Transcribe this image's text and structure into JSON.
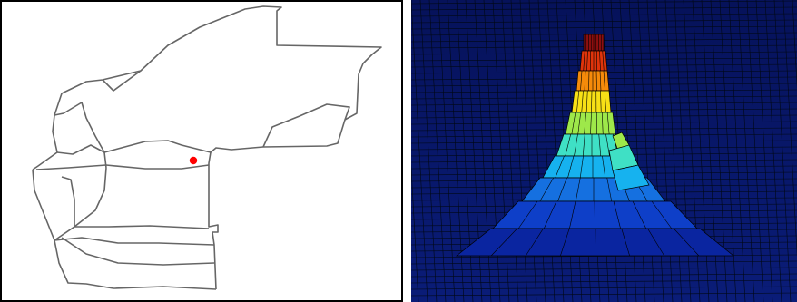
{
  "figure": {
    "left_panel": {
      "type": "network-map",
      "colors": {
        "frame": "#000000",
        "roads": "#666666",
        "marker": "#ff0000",
        "background": "#ffffff"
      },
      "icon": "red-dot-marker"
    },
    "right_panel": {
      "type": "3d-surface-plot",
      "colormap": "jet",
      "colors": {
        "background": "#07155e",
        "mesh_line": "#000000",
        "peak": "#a01010"
      }
    }
  }
}
